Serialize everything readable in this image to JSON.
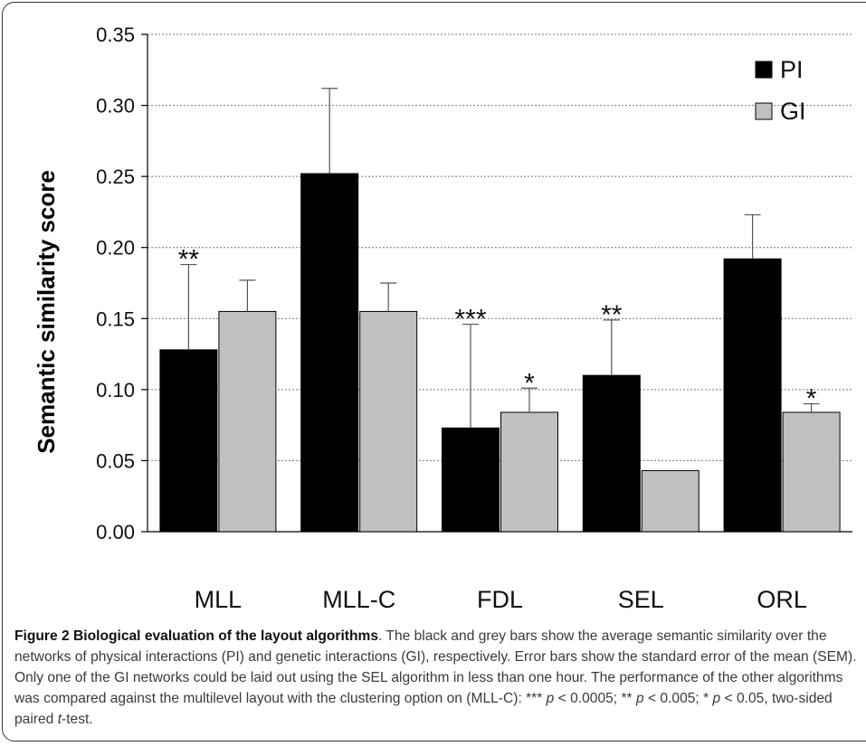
{
  "chart_data": {
    "type": "bar",
    "ylabel": "Semantic similarity score",
    "ylim": [
      0,
      0.35
    ],
    "yticks": [
      "0.00",
      "0.05",
      "0.10",
      "0.15",
      "0.20",
      "0.25",
      "0.30",
      "0.35"
    ],
    "grid": "horizontal dotted",
    "legend_position": "top-right",
    "categories": [
      "MLL",
      "MLL-C",
      "FDL",
      "SEL",
      "ORL"
    ],
    "series": [
      {
        "name": "PI",
        "color": "#000000",
        "values": [
          0.128,
          0.252,
          0.073,
          0.11,
          0.192
        ],
        "errors": [
          0.06,
          0.06,
          0.073,
          0.039,
          0.031
        ]
      },
      {
        "name": "GI",
        "color": "#c0c0c0",
        "values": [
          0.155,
          0.155,
          0.084,
          0.043,
          0.084
        ],
        "errors": [
          0.022,
          0.02,
          0.017,
          0.0,
          0.006
        ]
      }
    ],
    "annotations": [
      {
        "category": "MLL",
        "series": "PI",
        "text": "**"
      },
      {
        "category": "FDL",
        "series": "PI",
        "text": "***"
      },
      {
        "category": "FDL",
        "series": "GI",
        "text": "*"
      },
      {
        "category": "SEL",
        "series": "PI",
        "text": "**"
      },
      {
        "category": "ORL",
        "series": "GI",
        "text": "*"
      }
    ]
  },
  "caption": {
    "title": "Figure 2 Biological evaluation of the layout algorithms",
    "text1": ". The black and grey bars show the average semantic similarity over the networks of physical interactions (PI) and genetic interactions (GI), respectively. Error bars show the standard error of the mean (SEM). Only one of the GI networks could be laid out using the SEL algorithm in less than one hour. The performance of the other algorithms was compared against the multilevel layout with the clustering option on (MLL-C): *** ",
    "p1": "p",
    "t1": " < 0.0005; ** ",
    "p2": "p",
    "t2": " < 0.005; * ",
    "p3": "p",
    "t3": " < 0.05, two-sided paired ",
    "t_test": "t",
    "t4": "-test."
  }
}
